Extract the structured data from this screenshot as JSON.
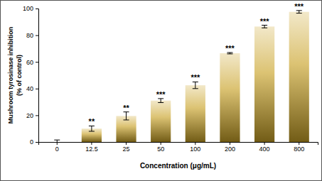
{
  "chart_data": {
    "type": "bar",
    "categories": [
      "0",
      "12.5",
      "25",
      "50",
      "100",
      "200",
      "400",
      "800"
    ],
    "values": [
      0,
      10,
      19.5,
      31,
      42.5,
      66.5,
      86.5,
      97.5
    ],
    "errors": [
      1.5,
      2,
      3,
      1.5,
      2.5,
      0.5,
      1,
      1
    ],
    "annotations": [
      null,
      "**",
      "**",
      "***",
      "***",
      "***",
      "***",
      "***"
    ],
    "color": "#c9a227",
    "x_label": "Concentration (μg/mL)",
    "y_label": [
      "Mushroom tyrosinase inhibition",
      "(% of control)"
    ],
    "ylim": [
      0,
      100
    ],
    "yticks": [
      0,
      20,
      40,
      60,
      80,
      100
    ],
    "grid": false
  }
}
